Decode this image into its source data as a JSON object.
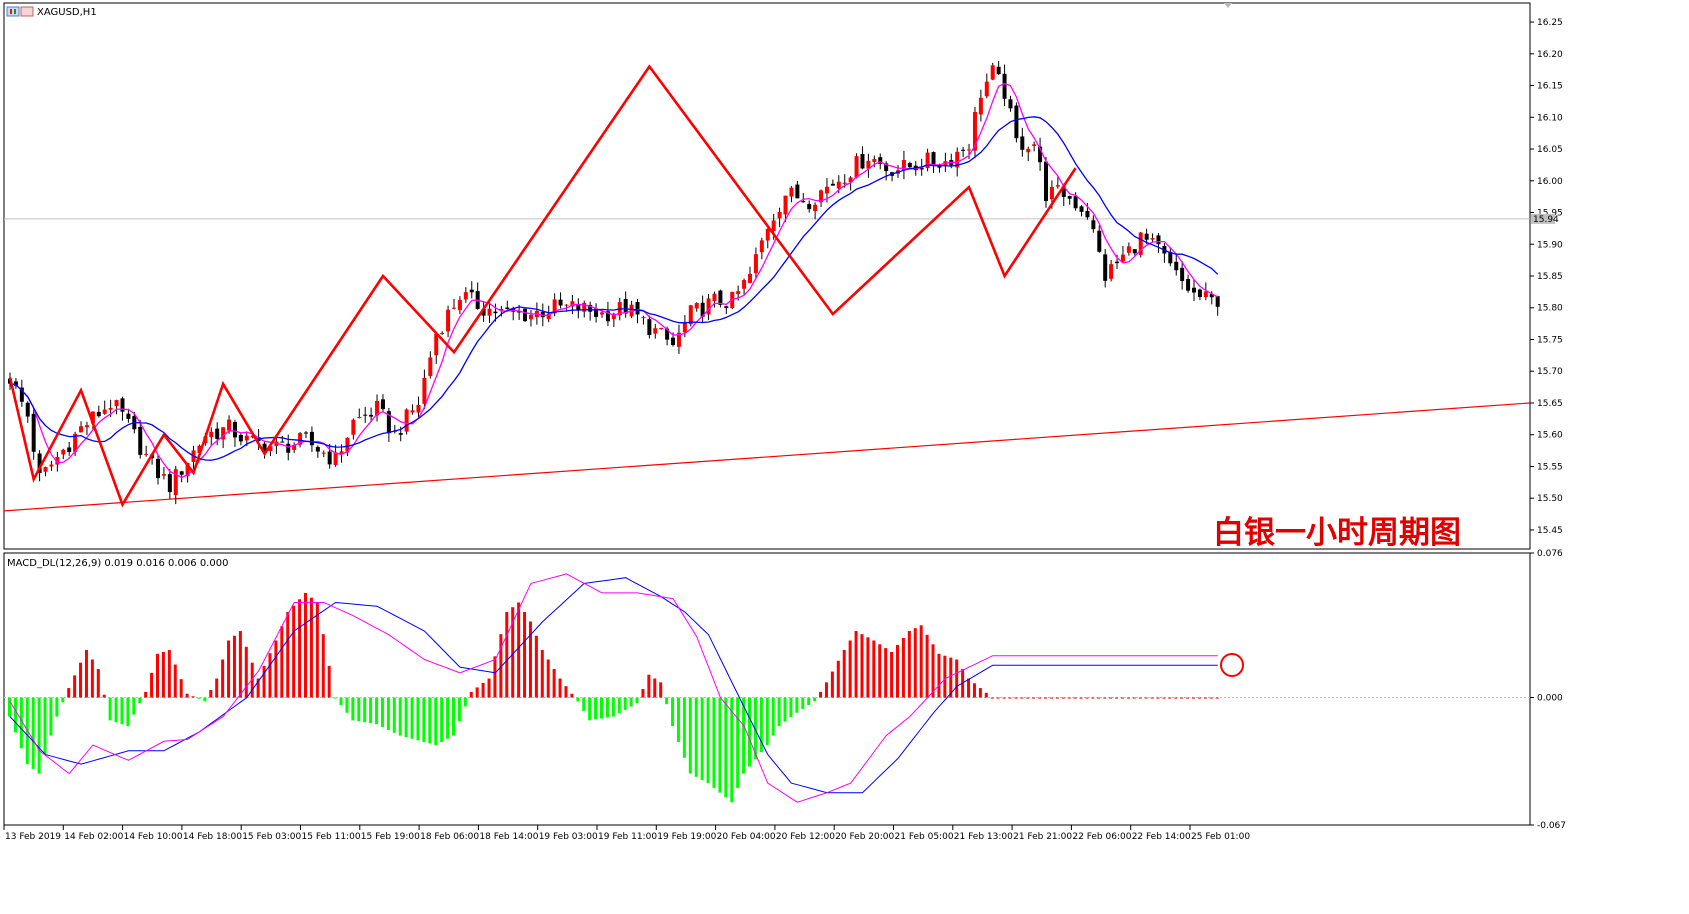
{
  "window": {
    "symbol_label": "XAGUSD,H1",
    "current_price_label": "15.94"
  },
  "price_panel": {
    "ylim": [
      15.42,
      16.28
    ],
    "y_ticks": [
      "16.25",
      "16.20",
      "16.15",
      "16.10",
      "16.05",
      "16.00",
      "15.95",
      "15.90",
      "15.85",
      "15.80",
      "15.75",
      "15.70",
      "15.65",
      "15.60",
      "15.55",
      "15.50",
      "15.45"
    ],
    "current_price": 15.94,
    "overlay_title": "白银一小时周期图"
  },
  "macd_panel": {
    "label": "MACD_DL(12,26,9) 0.019 0.016 0.006 0.000",
    "ylim": [
      -0.067,
      0.076
    ],
    "y_ticks": [
      "0.076",
      "0.000",
      "-0.067"
    ]
  },
  "time_axis": {
    "ticks": [
      "13 Feb 2019",
      "14 Feb 02:00",
      "14 Feb 10:00",
      "14 Feb 18:00",
      "15 Feb 03:00",
      "15 Feb 11:00",
      "15 Feb 19:00",
      "18 Feb 06:00",
      "18 Feb 14:00",
      "19 Feb 03:00",
      "19 Feb 11:00",
      "19 Feb 19:00",
      "20 Feb 04:00",
      "20 Feb 12:00",
      "20 Feb 20:00",
      "21 Feb 05:00",
      "21 Feb 13:00",
      "21 Feb 21:00",
      "22 Feb 06:00",
      "22 Feb 14:00",
      "25 Feb 01:00"
    ]
  },
  "colors": {
    "bull_candle": "#ff0000",
    "bear_candle": "#000000",
    "ma_fast": "#ff00ff",
    "ma_slow": "#0000ff",
    "zigzag": "#ff0000",
    "trendline": "#ff0000",
    "hist_positive": "#ff0000",
    "hist_negative": "#00ff00",
    "macd_line": "#0000ff",
    "signal_line": "#ff00ff"
  },
  "chart_data": [
    {
      "type": "candlestick",
      "title": "XAGUSD,H1",
      "ylim": [
        15.42,
        16.28
      ],
      "bar_count": 205,
      "waypoints": [
        [
          0,
          15.69
        ],
        [
          3,
          15.63
        ],
        [
          5,
          15.53
        ],
        [
          12,
          15.61
        ],
        [
          17,
          15.65
        ],
        [
          19,
          15.63
        ],
        [
          24,
          15.55
        ],
        [
          27,
          15.52
        ],
        [
          30,
          15.56
        ],
        [
          33,
          15.6
        ],
        [
          37,
          15.61
        ],
        [
          40,
          15.59
        ],
        [
          45,
          15.58
        ],
        [
          50,
          15.59
        ],
        [
          55,
          15.56
        ],
        [
          58,
          15.62
        ],
        [
          62,
          15.64
        ],
        [
          65,
          15.6
        ],
        [
          69,
          15.65
        ],
        [
          72,
          15.76
        ],
        [
          76,
          15.82
        ],
        [
          80,
          15.8
        ],
        [
          84,
          15.79
        ],
        [
          88,
          15.79
        ],
        [
          92,
          15.8
        ],
        [
          96,
          15.8
        ],
        [
          100,
          15.79
        ],
        [
          104,
          15.8
        ],
        [
          108,
          15.77
        ],
        [
          112,
          15.74
        ],
        [
          115,
          15.79
        ],
        [
          119,
          15.81
        ],
        [
          122,
          15.81
        ],
        [
          125,
          15.85
        ],
        [
          128,
          15.93
        ],
        [
          131,
          15.98
        ],
        [
          135,
          15.97
        ],
        [
          138,
          15.99
        ],
        [
          141,
          16.01
        ],
        [
          145,
          16.04
        ],
        [
          148,
          16.02
        ],
        [
          151,
          16.02
        ],
        [
          155,
          16.03
        ],
        [
          158,
          16.03
        ],
        [
          162,
          16.06
        ],
        [
          164,
          16.14
        ],
        [
          166,
          16.17
        ],
        [
          168,
          16.14
        ],
        [
          170,
          16.06
        ],
        [
          173,
          16.06
        ],
        [
          175,
          15.98
        ],
        [
          178,
          15.98
        ],
        [
          182,
          15.95
        ],
        [
          185,
          15.85
        ],
        [
          188,
          15.88
        ],
        [
          191,
          15.91
        ],
        [
          194,
          15.89
        ],
        [
          197,
          15.85
        ],
        [
          200,
          15.82
        ],
        [
          203,
          15.81
        ],
        [
          206,
          15.82
        ]
      ],
      "moving_averages": [
        {
          "name": "ma_fast",
          "period": 5,
          "color": "#ff00ff"
        },
        {
          "name": "ma_slow",
          "period": 13,
          "color": "#0000ff"
        }
      ],
      "zigzag": [
        {
          "bar": 0,
          "price": 15.69
        },
        {
          "bar": 4,
          "price": 15.53
        },
        {
          "bar": 12,
          "price": 15.67
        },
        {
          "bar": 19,
          "price": 15.49
        },
        {
          "bar": 26,
          "price": 15.6
        },
        {
          "bar": 31,
          "price": 15.54
        },
        {
          "bar": 36,
          "price": 15.68
        },
        {
          "bar": 43,
          "price": 15.57
        },
        {
          "bar": 63,
          "price": 15.85
        },
        {
          "bar": 75,
          "price": 15.73
        },
        {
          "bar": 108,
          "price": 16.18
        },
        {
          "bar": 139,
          "price": 15.79
        },
        {
          "bar": 162,
          "price": 15.99
        },
        {
          "bar": 168,
          "price": 15.85
        },
        {
          "bar": 180,
          "price": 16.02
        }
      ],
      "trendline": {
        "from": {
          "bar": 0,
          "price": 15.48
        },
        "to": {
          "bar": 205,
          "price": 15.65
        }
      },
      "current_price": 15.94
    },
    {
      "type": "bar",
      "title": "MACD_DL(12,26,9) 0.019 0.016 0.006 0.000",
      "ylim": [
        -0.067,
        0.076
      ],
      "hist_waypoints": [
        [
          0,
          -0.01
        ],
        [
          3,
          -0.035
        ],
        [
          5,
          -0.04
        ],
        [
          8,
          -0.01
        ],
        [
          10,
          0.005
        ],
        [
          13,
          0.025
        ],
        [
          15,
          0.015
        ],
        [
          17,
          -0.012
        ],
        [
          20,
          -0.015
        ],
        [
          23,
          0.003
        ],
        [
          25,
          0.023
        ],
        [
          27,
          0.025
        ],
        [
          30,
          0.002
        ],
        [
          33,
          -0.002
        ],
        [
          35,
          0.01
        ],
        [
          37,
          0.03
        ],
        [
          39,
          0.035
        ],
        [
          42,
          0.01
        ],
        [
          45,
          0.03
        ],
        [
          47,
          0.045
        ],
        [
          50,
          0.055
        ],
        [
          52,
          0.05
        ],
        [
          55,
          0.0
        ],
        [
          58,
          -0.012
        ],
        [
          62,
          -0.014
        ],
        [
          66,
          -0.02
        ],
        [
          72,
          -0.025
        ],
        [
          75,
          -0.02
        ],
        [
          78,
          0.003
        ],
        [
          81,
          0.01
        ],
        [
          84,
          0.045
        ],
        [
          86,
          0.05
        ],
        [
          88,
          0.04
        ],
        [
          90,
          0.025
        ],
        [
          93,
          0.01
        ],
        [
          96,
          -0.002
        ],
        [
          98,
          -0.012
        ],
        [
          102,
          -0.01
        ],
        [
          106,
          -0.003
        ],
        [
          108,
          0.012
        ],
        [
          110,
          0.008
        ],
        [
          112,
          -0.015
        ],
        [
          115,
          -0.04
        ],
        [
          118,
          -0.045
        ],
        [
          122,
          -0.055
        ],
        [
          124,
          -0.04
        ],
        [
          128,
          -0.025
        ],
        [
          130,
          -0.015
        ],
        [
          133,
          -0.008
        ],
        [
          136,
          -0.002
        ],
        [
          138,
          0.008
        ],
        [
          141,
          0.025
        ],
        [
          143,
          0.035
        ],
        [
          146,
          0.03
        ],
        [
          149,
          0.024
        ],
        [
          152,
          0.035
        ],
        [
          154,
          0.038
        ],
        [
          157,
          0.023
        ],
        [
          160,
          0.02
        ],
        [
          162,
          0.01
        ],
        [
          164,
          0.005
        ],
        [
          166,
          0.0
        ]
      ],
      "macd_waypoints": [
        [
          0,
          -0.01
        ],
        [
          6,
          -0.03
        ],
        [
          12,
          -0.035
        ],
        [
          20,
          -0.028
        ],
        [
          26,
          -0.028
        ],
        [
          32,
          -0.018
        ],
        [
          40,
          0.0
        ],
        [
          48,
          0.035
        ],
        [
          55,
          0.05
        ],
        [
          62,
          0.048
        ],
        [
          70,
          0.035
        ],
        [
          76,
          0.016
        ],
        [
          82,
          0.013
        ],
        [
          90,
          0.04
        ],
        [
          97,
          0.06
        ],
        [
          104,
          0.063
        ],
        [
          110,
          0.053
        ],
        [
          114,
          0.045
        ],
        [
          118,
          0.033
        ],
        [
          124,
          -0.005
        ],
        [
          128,
          -0.03
        ],
        [
          132,
          -0.045
        ],
        [
          138,
          -0.05
        ],
        [
          144,
          -0.05
        ],
        [
          150,
          -0.032
        ],
        [
          156,
          -0.008
        ],
        [
          160,
          0.006
        ],
        [
          166,
          0.017
        ]
      ],
      "signal_waypoints": [
        [
          0,
          -0.002
        ],
        [
          5,
          -0.028
        ],
        [
          10,
          -0.04
        ],
        [
          14,
          -0.025
        ],
        [
          20,
          -0.033
        ],
        [
          26,
          -0.023
        ],
        [
          30,
          -0.022
        ],
        [
          36,
          -0.01
        ],
        [
          42,
          0.014
        ],
        [
          48,
          0.05
        ],
        [
          53,
          0.05
        ],
        [
          58,
          0.043
        ],
        [
          64,
          0.033
        ],
        [
          70,
          0.02
        ],
        [
          76,
          0.013
        ],
        [
          82,
          0.02
        ],
        [
          88,
          0.06
        ],
        [
          94,
          0.065
        ],
        [
          100,
          0.055
        ],
        [
          106,
          0.055
        ],
        [
          112,
          0.052
        ],
        [
          116,
          0.032
        ],
        [
          120,
          0.0
        ],
        [
          124,
          -0.015
        ],
        [
          128,
          -0.045
        ],
        [
          133,
          -0.055
        ],
        [
          138,
          -0.05
        ],
        [
          142,
          -0.045
        ],
        [
          148,
          -0.02
        ],
        [
          152,
          -0.01
        ],
        [
          158,
          0.01
        ],
        [
          166,
          0.022
        ]
      ]
    }
  ]
}
